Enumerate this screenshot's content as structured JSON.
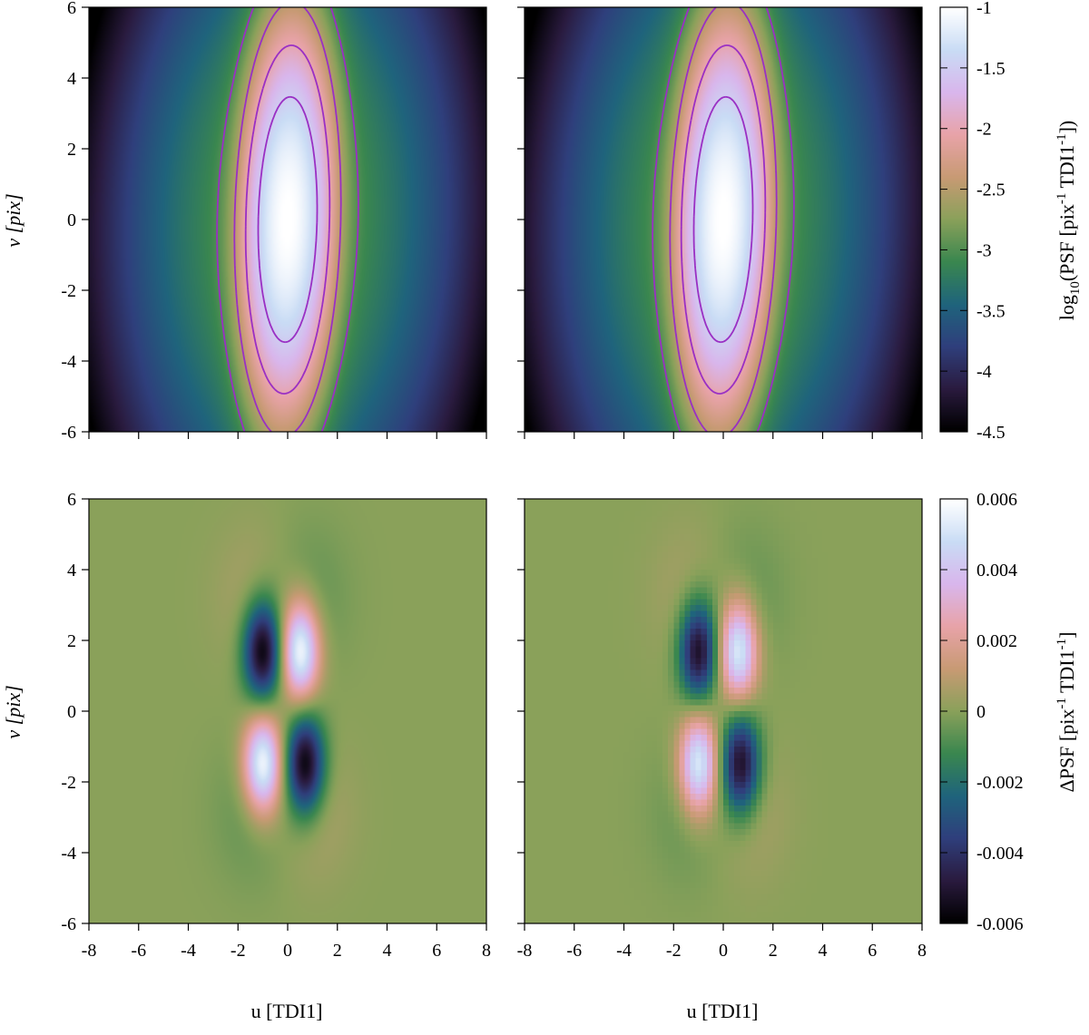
{
  "chart_data": [
    {
      "type": "heatmap",
      "panel": "top-left",
      "xlabel": "",
      "ylabel": "v [pix]",
      "xlim": [
        -8,
        8
      ],
      "ylim": [
        -6,
        6
      ],
      "xticks": [
        -8,
        -6,
        -4,
        -2,
        0,
        2,
        4,
        6,
        8
      ],
      "yticks": [
        "-6",
        "-4",
        "-2",
        "0",
        "2",
        "4",
        "6"
      ],
      "z_range": [
        -4.5,
        -1
      ],
      "model": {
        "peak_log10": -1.0,
        "core_sigma_u": 0.75,
        "core_sigma_v": 2.2,
        "halo_sigma_u": 3.2,
        "halo_sigma_v": 4.5,
        "shear": 0.2
      },
      "contour_levels": [
        -1.5,
        -2,
        -2.5,
        -3
      ]
    },
    {
      "type": "heatmap",
      "panel": "top-right",
      "xlabel": "",
      "ylabel": "",
      "xlim": [
        -8,
        8
      ],
      "ylim": [
        -6,
        6
      ],
      "xticks": [
        -8,
        -6,
        -4,
        -2,
        0,
        2,
        4,
        6,
        8
      ],
      "yticks": [
        "-6",
        "-4",
        "-2",
        "0",
        "2",
        "4",
        "6"
      ],
      "z_range": [
        -4.5,
        -1
      ],
      "model": {
        "peak_log10": -1.0,
        "core_sigma_u": 0.75,
        "core_sigma_v": 2.2,
        "halo_sigma_u": 3.2,
        "halo_sigma_v": 4.5,
        "shear": 0.2
      },
      "contour_levels": [
        -1.5,
        -2,
        -2.5,
        -3
      ]
    },
    {
      "type": "heatmap",
      "panel": "bottom-left",
      "xlabel": "u [TDI1]",
      "ylabel": "v [pix]",
      "xlim": [
        -8,
        8
      ],
      "ylim": [
        -6,
        6
      ],
      "xticks": [
        "-8",
        "-6",
        "-4",
        "-2",
        "0",
        "2",
        "4",
        "6",
        "8"
      ],
      "yticks": [
        "-6",
        "-4",
        "-2",
        "0",
        "2",
        "4",
        "6"
      ],
      "z_range": [
        -0.006,
        0.006
      ],
      "blobs": [
        {
          "u": -1.0,
          "v": 1.7,
          "amp": -0.006
        },
        {
          "u": 0.5,
          "v": 1.7,
          "amp": 0.006
        },
        {
          "u": -1.0,
          "v": -1.5,
          "amp": 0.006
        },
        {
          "u": 0.7,
          "v": -1.5,
          "amp": -0.006
        }
      ],
      "pixelated": false
    },
    {
      "type": "heatmap",
      "panel": "bottom-right",
      "xlabel": "u [TDI1]",
      "ylabel": "",
      "xlim": [
        -8,
        8
      ],
      "ylim": [
        -6,
        6
      ],
      "xticks": [
        "-8",
        "-6",
        "-4",
        "-2",
        "0",
        "2",
        "4",
        "6",
        "8"
      ],
      "yticks": [
        "-6",
        "-4",
        "-2",
        "0",
        "2",
        "4",
        "6"
      ],
      "z_range": [
        -0.006,
        0.006
      ],
      "blobs": [
        {
          "u": -1.0,
          "v": 1.7,
          "amp": -0.0055
        },
        {
          "u": 0.6,
          "v": 1.7,
          "amp": 0.0055
        },
        {
          "u": -1.0,
          "v": -1.5,
          "amp": 0.0055
        },
        {
          "u": 0.7,
          "v": -1.5,
          "amp": -0.0055
        }
      ],
      "pixelated": true
    }
  ],
  "colorbars": [
    {
      "label_main": "log",
      "label_sub": "10",
      "label_rest": "(PSF [pix",
      "label_sup1": "-1",
      "label_mid": " TDI1",
      "label_sup2": "-1",
      "label_end": "])",
      "ticks": [
        "-1",
        "-1.5",
        "-2",
        "-2.5",
        "-3",
        "-3.5",
        "-4",
        "-4.5"
      ],
      "range": [
        -4.5,
        -1
      ]
    },
    {
      "label_main": "ΔPSF [pix",
      "label_sup1": "-1",
      "label_mid": " TDI1",
      "label_sup2": "-1",
      "label_end": "]",
      "ticks": [
        "0.006",
        "0.004",
        "0.002",
        "0",
        "-0.002",
        "-0.004",
        "-0.006"
      ],
      "range": [
        -0.006,
        0.006
      ]
    }
  ],
  "colormap": [
    "#000000",
    "#2a1b3f",
    "#2f3f7c",
    "#1f647c",
    "#3a874f",
    "#8aa15a",
    "#c89a74",
    "#e8a3a8",
    "#d9b6ec",
    "#c9dcf5",
    "#ffffff"
  ]
}
